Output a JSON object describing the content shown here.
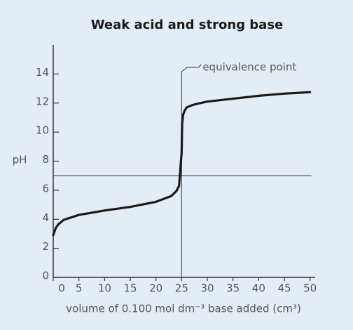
{
  "chart_data": {
    "type": "line",
    "title": "Weak acid and strong base",
    "x_label": "volume of 0.100 mol dm⁻³ base added (cm³)",
    "y_label": "pH",
    "series": [
      {
        "name": "pH",
        "color": "#1a1a1a",
        "x": [
          0,
          0.5,
          1,
          2,
          5,
          10,
          15,
          20,
          23,
          24,
          24.5,
          25,
          25.1,
          25.3,
          25.6,
          26,
          27,
          28,
          30,
          35,
          40,
          45,
          50
        ],
        "values": [
          2.9,
          3.4,
          3.65,
          3.95,
          4.3,
          4.6,
          4.85,
          5.2,
          5.6,
          5.95,
          6.3,
          8.6,
          10.6,
          11.2,
          11.5,
          11.7,
          11.85,
          11.95,
          12.1,
          12.3,
          12.5,
          12.65,
          12.75
        ]
      }
    ],
    "reference_lines": {
      "x": 25,
      "y": 7
    },
    "annotation": "equivalence point",
    "xlim": [
      0,
      51
    ],
    "ylim": [
      0,
      16
    ],
    "xticks": [
      0,
      5,
      10,
      15,
      20,
      25,
      30,
      35,
      40,
      45,
      50
    ],
    "yticks": [
      0,
      2,
      4,
      6,
      8,
      10,
      12,
      14
    ]
  }
}
